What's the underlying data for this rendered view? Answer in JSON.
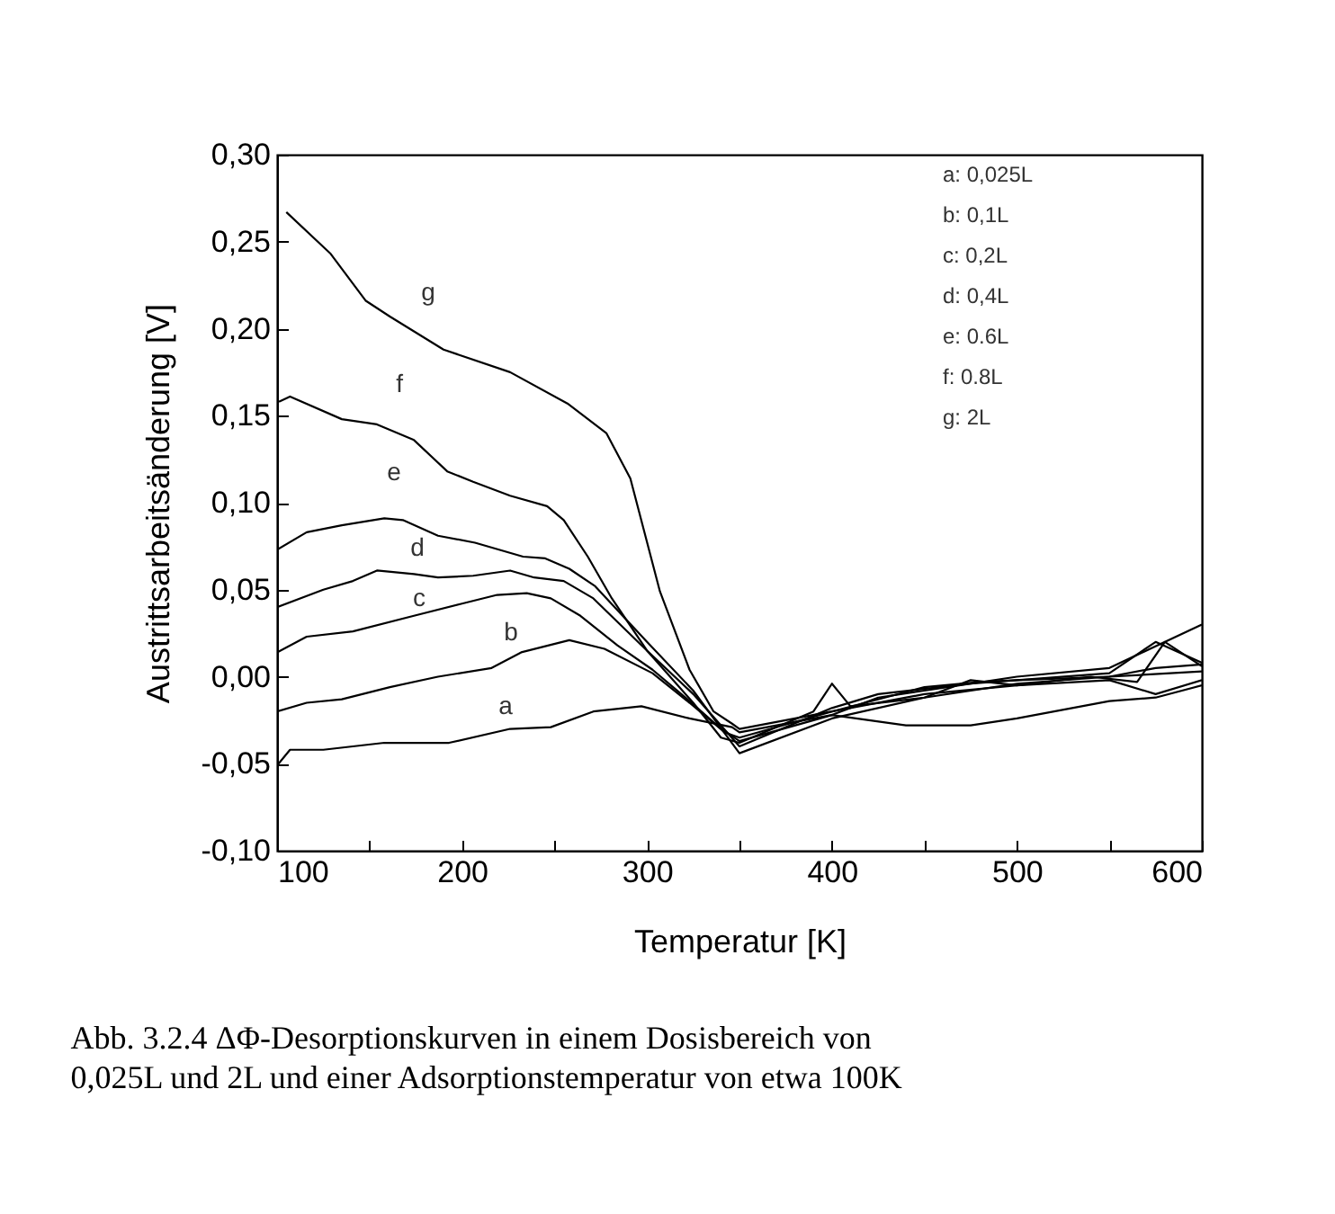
{
  "chart_data": {
    "type": "line",
    "xlabel": "Temperatur [K]",
    "ylabel": "Austrittsarbeitsänderung [V]",
    "xlim": [
      100,
      600
    ],
    "xticks": [
      100,
      {
        "value": 150,
        "label": null
      },
      200,
      {
        "value": 250,
        "label": null
      },
      300,
      {
        "value": 350,
        "label": null
      },
      400,
      {
        "value": 450,
        "label": null
      },
      500,
      {
        "value": 550,
        "label": null
      },
      600
    ],
    "ylim": [
      -0.1,
      0.3
    ],
    "yticks": [
      {
        "value": -0.1,
        "label": "-0,10"
      },
      {
        "value": -0.05,
        "label": "-0,05"
      },
      {
        "value": 0,
        "label": "0,00"
      },
      {
        "value": 0.05,
        "label": "0,05"
      },
      {
        "value": 0.1,
        "label": "0,10"
      },
      {
        "value": 0.15,
        "label": "0,15"
      },
      {
        "value": 0.2,
        "label": "0,20"
      },
      {
        "value": 0.25,
        "label": "0,25"
      },
      {
        "value": 0.3,
        "label": "0,30"
      }
    ],
    "grid": false,
    "legend": false,
    "series": [
      {
        "color": "#000000",
        "x": [
          100,
          107,
          125,
          158,
          193,
          226,
          248,
          271,
          297,
          323,
          346,
          350,
          400,
          440,
          475,
          500,
          550,
          575,
          600
        ],
        "values": [
          -0.051,
          -0.042,
          -0.042,
          -0.038,
          -0.038,
          -0.03,
          -0.029,
          -0.02,
          -0.017,
          -0.024,
          -0.029,
          -0.032,
          -0.022,
          -0.028,
          -0.028,
          -0.024,
          -0.014,
          -0.012,
          -0.005
        ]
      },
      {
        "color": "#000000",
        "x": [
          100,
          116,
          135,
          161,
          187,
          216,
          232,
          258,
          277,
          303,
          323,
          342,
          350,
          400,
          450,
          500,
          550,
          575,
          600
        ],
        "values": [
          -0.02,
          -0.015,
          -0.013,
          -0.006,
          0.0,
          0.005,
          0.014,
          0.021,
          0.016,
          0.002,
          -0.015,
          -0.032,
          -0.035,
          -0.02,
          -0.01,
          -0.005,
          -0.002,
          -0.01,
          -0.002
        ]
      },
      {
        "color": "#000000",
        "x": [
          100,
          116,
          141,
          174,
          200,
          219,
          235,
          248,
          264,
          284,
          303,
          323,
          339,
          350,
          400,
          425,
          450,
          500,
          550,
          600
        ],
        "values": [
          0.014,
          0.023,
          0.026,
          0.035,
          0.042,
          0.047,
          0.048,
          0.045,
          0.035,
          0.018,
          0.004,
          -0.014,
          -0.029,
          -0.037,
          -0.022,
          -0.012,
          -0.008,
          0.0,
          0.005,
          0.03
        ]
      },
      {
        "color": "#000000",
        "x": [
          100,
          125,
          141,
          154,
          174,
          187,
          206,
          226,
          239,
          255,
          271,
          300,
          325,
          350,
          400,
          425,
          475,
          500,
          550,
          575,
          600
        ],
        "values": [
          0.04,
          0.05,
          0.055,
          0.061,
          0.059,
          0.057,
          0.058,
          0.061,
          0.057,
          0.055,
          0.045,
          0.015,
          -0.01,
          -0.04,
          -0.018,
          -0.01,
          -0.004,
          -0.002,
          0.002,
          0.02,
          0.008
        ]
      },
      {
        "color": "#000000",
        "x": [
          100,
          116,
          135,
          158,
          168,
          187,
          207,
          233,
          245,
          258,
          272,
          300,
          325,
          350,
          400,
          450,
          500,
          550,
          575,
          600
        ],
        "values": [
          0.073,
          0.083,
          0.087,
          0.091,
          0.09,
          0.081,
          0.077,
          0.069,
          0.068,
          0.062,
          0.052,
          0.02,
          -0.008,
          -0.044,
          -0.024,
          -0.012,
          -0.004,
          0.0,
          0.005,
          0.007
        ]
      },
      {
        "color": "#000000",
        "x": [
          101,
          107,
          135,
          154,
          174,
          192,
          206,
          226,
          246,
          255,
          268,
          281,
          300,
          325,
          340,
          350,
          390,
          400,
          410,
          450,
          475,
          500,
          540,
          565,
          580,
          600
        ],
        "values": [
          0.158,
          0.161,
          0.148,
          0.145,
          0.136,
          0.118,
          0.112,
          0.104,
          0.098,
          0.09,
          0.069,
          0.045,
          0.015,
          -0.015,
          -0.035,
          -0.038,
          -0.02,
          -0.004,
          -0.017,
          -0.012,
          -0.002,
          -0.005,
          0.0,
          -0.003,
          0.02,
          0.006
        ]
      },
      {
        "color": "#000000",
        "x": [
          105,
          129,
          148,
          161,
          190,
          226,
          257,
          278,
          291,
          307,
          323,
          336,
          346,
          350,
          400,
          450,
          480,
          500,
          550,
          600
        ],
        "values": [
          0.267,
          0.243,
          0.216,
          0.207,
          0.188,
          0.175,
          0.157,
          0.14,
          0.114,
          0.049,
          0.004,
          -0.02,
          -0.027,
          -0.03,
          -0.02,
          -0.006,
          -0.003,
          -0.002,
          0.0,
          0.003
        ]
      }
    ],
    "annotations": [
      "a",
      "b",
      "c",
      "d",
      "e",
      "f",
      "g",
      "a: 0,025L",
      "b: 0,1L",
      "c: 0,2L",
      "d: 0,4L",
      "e: 0.6L",
      "f: 0.8L",
      "g: 2L",
      "Abb. 3.2.4 ΔΦ-Desorptionskurven in einem Dosisbereich von\n0,025L und 2L und einer Adsorptionstemperatur von etwa 100K"
    ]
  }
}
